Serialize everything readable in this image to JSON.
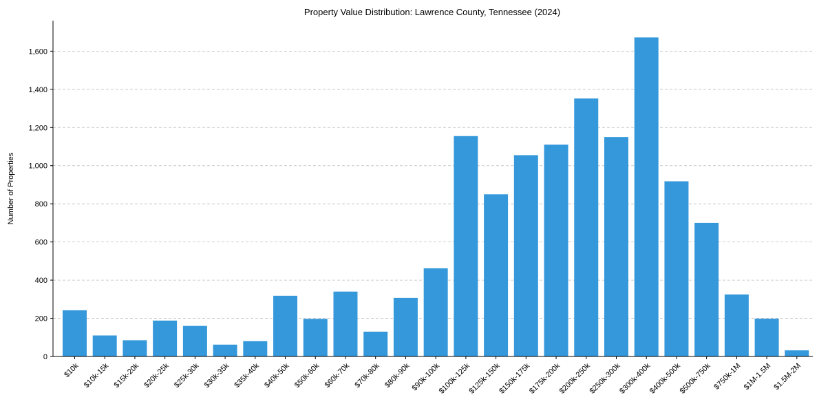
{
  "chart_data": {
    "type": "bar",
    "title": "Property Value Distribution: Lawrence County, Tennessee (2024)",
    "xlabel": "",
    "ylabel": "Number of Properties",
    "ylim": [
      0,
      1760
    ],
    "yticks": [
      0,
      200,
      400,
      600,
      800,
      1000,
      1200,
      1400,
      1600
    ],
    "ytick_labels": [
      "0",
      "200",
      "400",
      "600",
      "800",
      "1,000",
      "1,200",
      "1,400",
      "1,600"
    ],
    "grid": true,
    "bar_color": "#3498db",
    "categories": [
      "$10k",
      "$10k-15k",
      "$15k-20k",
      "$20k-25k",
      "$25k-30k",
      "$30k-35k",
      "$35k-40k",
      "$40k-50k",
      "$50k-60k",
      "$60k-70k",
      "$70k-80k",
      "$80k-90k",
      "$90k-100k",
      "$100k-125k",
      "$125k-150k",
      "$150k-175k",
      "$175k-200k",
      "$200k-250k",
      "$250k-300k",
      "$300k-400k",
      "$400k-500k",
      "$500k-750k",
      "$750k-1M",
      "$1M-1.5M",
      "$1.5M-2M"
    ],
    "values": [
      242,
      110,
      85,
      188,
      160,
      62,
      80,
      318,
      197,
      340,
      130,
      307,
      462,
      1155,
      850,
      1055,
      1110,
      1352,
      1150,
      1672,
      918,
      700,
      325,
      198,
      32
    ]
  }
}
